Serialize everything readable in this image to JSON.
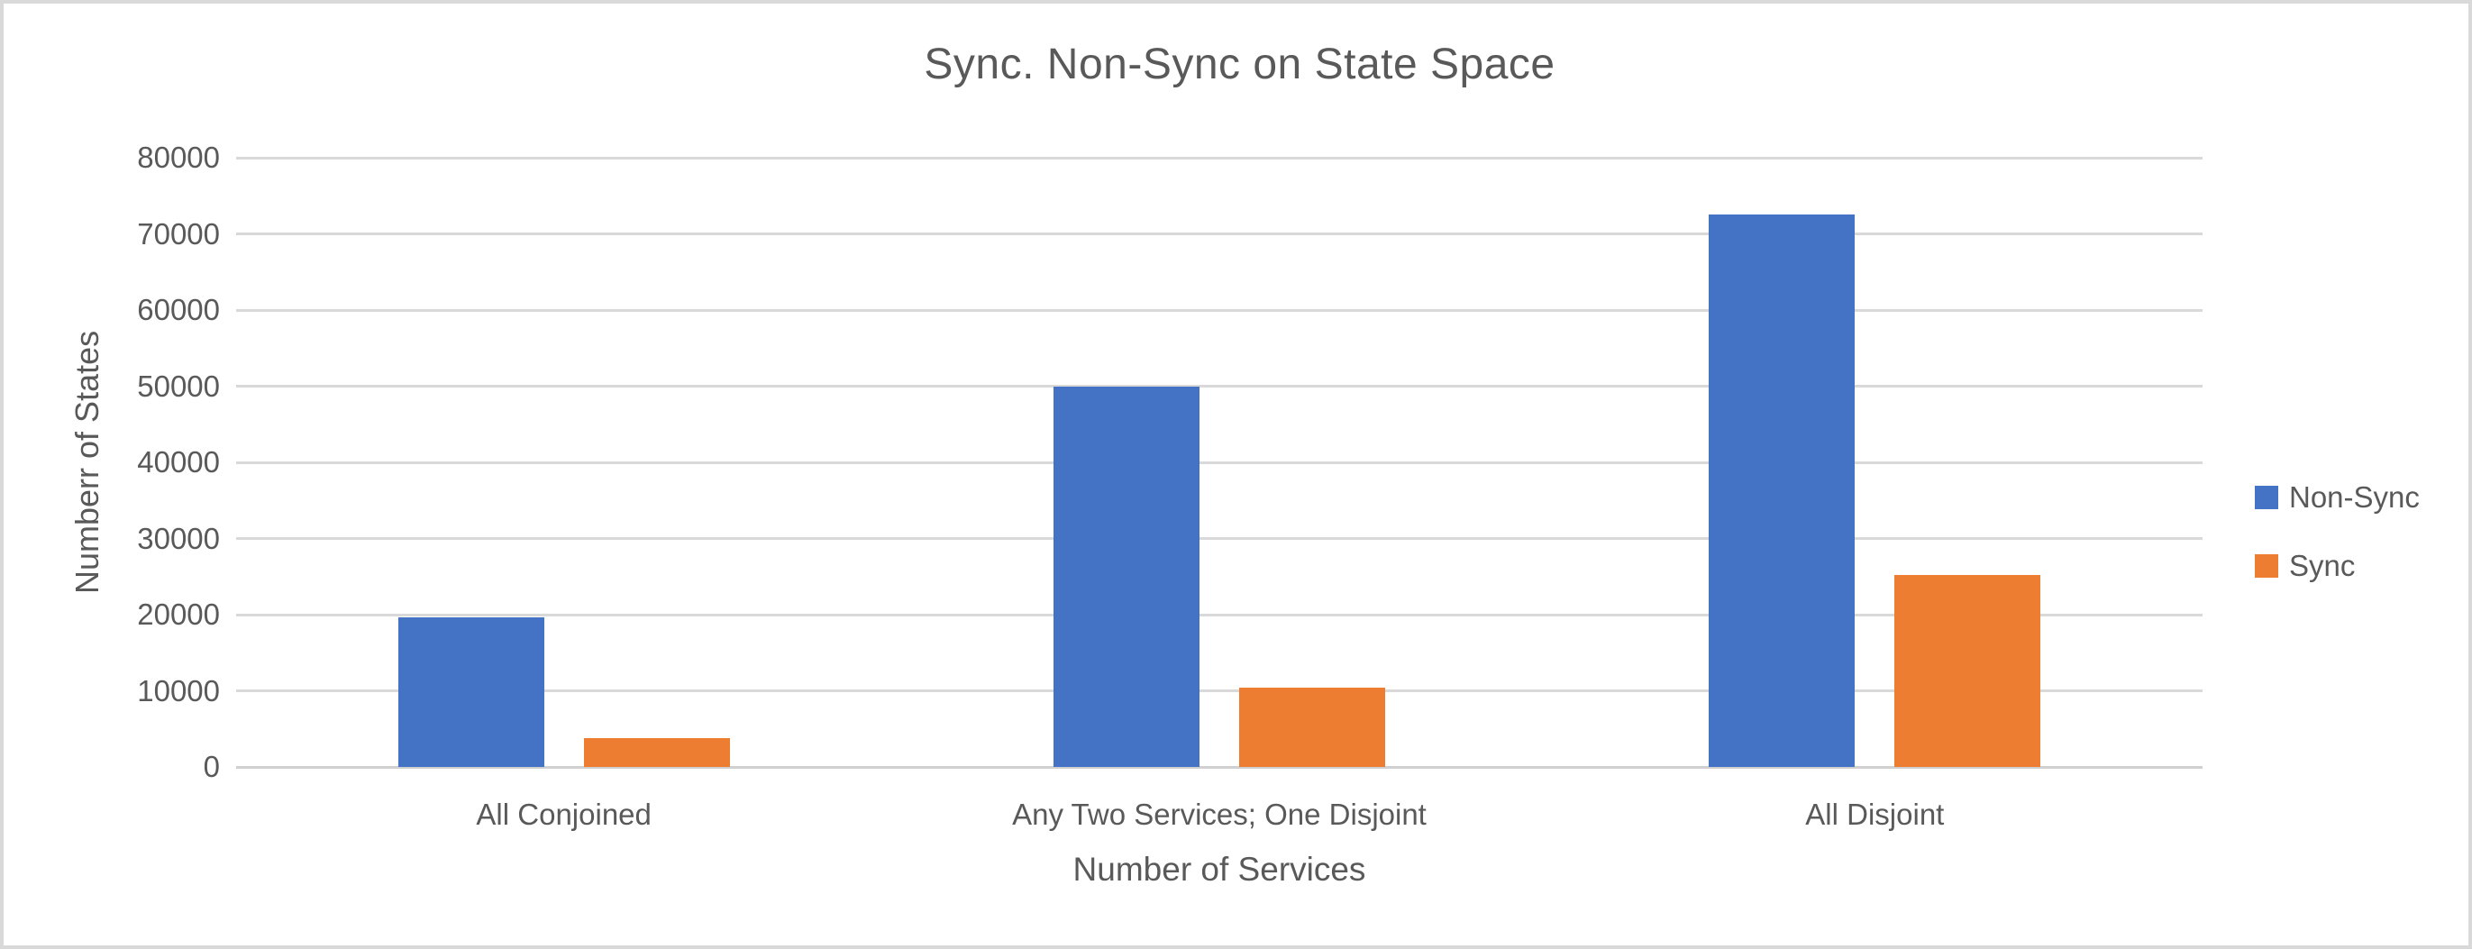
{
  "chart_data": {
    "type": "bar",
    "title": "Sync. Non-Sync on State Space",
    "xlabel": "Number of Services",
    "ylabel": "Numberr of States",
    "categories": [
      "All Conjoined",
      "Any Two Services; One Disjoint",
      "All Disjoint"
    ],
    "series": [
      {
        "name": "Non-Sync",
        "color": "#4472C4",
        "values": [
          19600,
          50000,
          72500
        ]
      },
      {
        "name": "Sync",
        "color": "#ED7D31",
        "values": [
          3800,
          10400,
          25200
        ]
      }
    ],
    "ylim": [
      0,
      80000
    ],
    "ytick_step": 10000,
    "ytick_labels": [
      "0",
      "10000",
      "20000",
      "30000",
      "40000",
      "50000",
      "60000",
      "70000",
      "80000"
    ],
    "grid": true,
    "legend_position": "right"
  },
  "colors": {
    "background": "#FFFFFF",
    "border": "#D9D9D9",
    "gridline": "#D9D9D9",
    "text": "#595959",
    "non_sync": "#4472C4",
    "sync": "#ED7D31"
  }
}
